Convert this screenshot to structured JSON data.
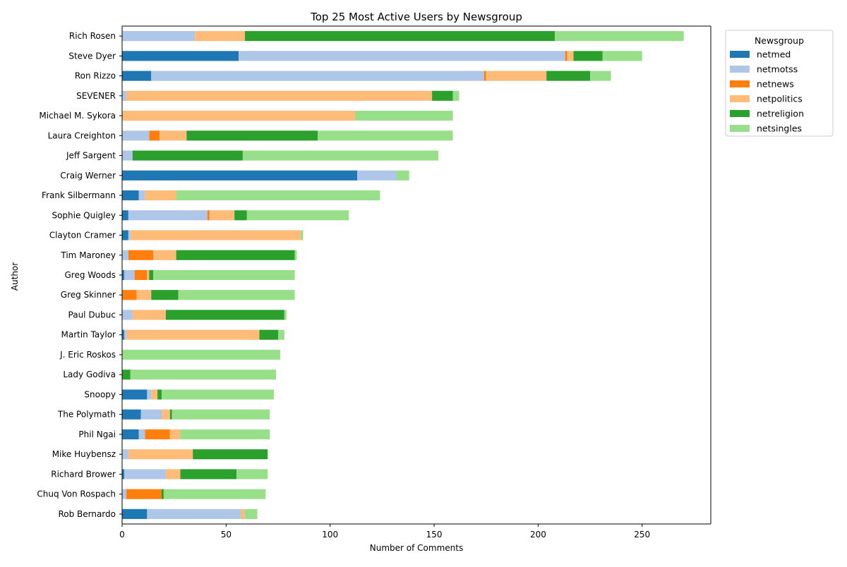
{
  "chart_data": {
    "type": "bar",
    "orientation": "horizontal",
    "stacked": true,
    "title": "Top 25 Most Active Users by Newsgroup",
    "xlabel": "Number of Comments",
    "ylabel": "Author",
    "xlim": [
      0,
      283
    ],
    "xticks": [
      0,
      50,
      100,
      150,
      200,
      250
    ],
    "grid": false,
    "legend": {
      "title": "Newsgroup",
      "placement": "outside-top-right"
    },
    "categories": [
      "Rich Rosen",
      "Steve Dyer",
      "Ron Rizzo",
      "SEVENER",
      "Michael M. Sykora",
      "Laura Creighton",
      "Jeff Sargent",
      "Craig Werner",
      "Frank Silbermann",
      "Sophie Quigley",
      "Clayton Cramer",
      "Tim Maroney",
      "Greg Woods",
      "Greg Skinner",
      "Paul Dubuc",
      "Martin Taylor",
      "J. Eric Roskos",
      "Lady Godiva",
      "Snoopy",
      "The Polymath",
      "Phil Ngai",
      "Mike Huybensz",
      "Richard Brower",
      "Chuq Von Rospach",
      "Rob Bernardo"
    ],
    "series": [
      {
        "name": "netmed",
        "color": "#1f77b4",
        "values": [
          0,
          56,
          14,
          0,
          0,
          0,
          0,
          113,
          8,
          3,
          3,
          0,
          1,
          0,
          0,
          1,
          0,
          0,
          12,
          9,
          8,
          0,
          1,
          0,
          12
        ]
      },
      {
        "name": "netmotss",
        "color": "#aec7e8",
        "values": [
          35,
          157,
          160,
          2,
          0,
          13,
          5,
          19,
          3,
          38,
          1,
          3,
          5,
          0,
          5,
          1,
          0,
          0,
          2,
          10,
          3,
          3,
          20,
          2,
          45
        ]
      },
      {
        "name": "netnews",
        "color": "#ff7f0e",
        "values": [
          0,
          1,
          1,
          0,
          0,
          5,
          0,
          0,
          0,
          1,
          0,
          12,
          6,
          7,
          0,
          0,
          0,
          0,
          0,
          0,
          12,
          0,
          0,
          17,
          0
        ]
      },
      {
        "name": "netpolitics",
        "color": "#ffbb78",
        "values": [
          24,
          3,
          29,
          147,
          112,
          13,
          0,
          0,
          15,
          12,
          82,
          11,
          1,
          7,
          16,
          64,
          0,
          0,
          3,
          4,
          5,
          31,
          7,
          0,
          2
        ]
      },
      {
        "name": "netreligion",
        "color": "#2ca02c",
        "values": [
          149,
          14,
          21,
          10,
          0,
          63,
          53,
          0,
          0,
          6,
          0,
          57,
          2,
          13,
          57,
          9,
          0,
          4,
          2,
          1,
          0,
          36,
          27,
          1,
          0
        ]
      },
      {
        "name": "netsingles",
        "color": "#98df8a",
        "values": [
          62,
          19,
          10,
          3,
          47,
          65,
          94,
          6,
          98,
          49,
          1,
          1,
          68,
          56,
          1,
          3,
          76,
          70,
          54,
          47,
          43,
          0,
          15,
          49,
          6
        ]
      }
    ]
  }
}
